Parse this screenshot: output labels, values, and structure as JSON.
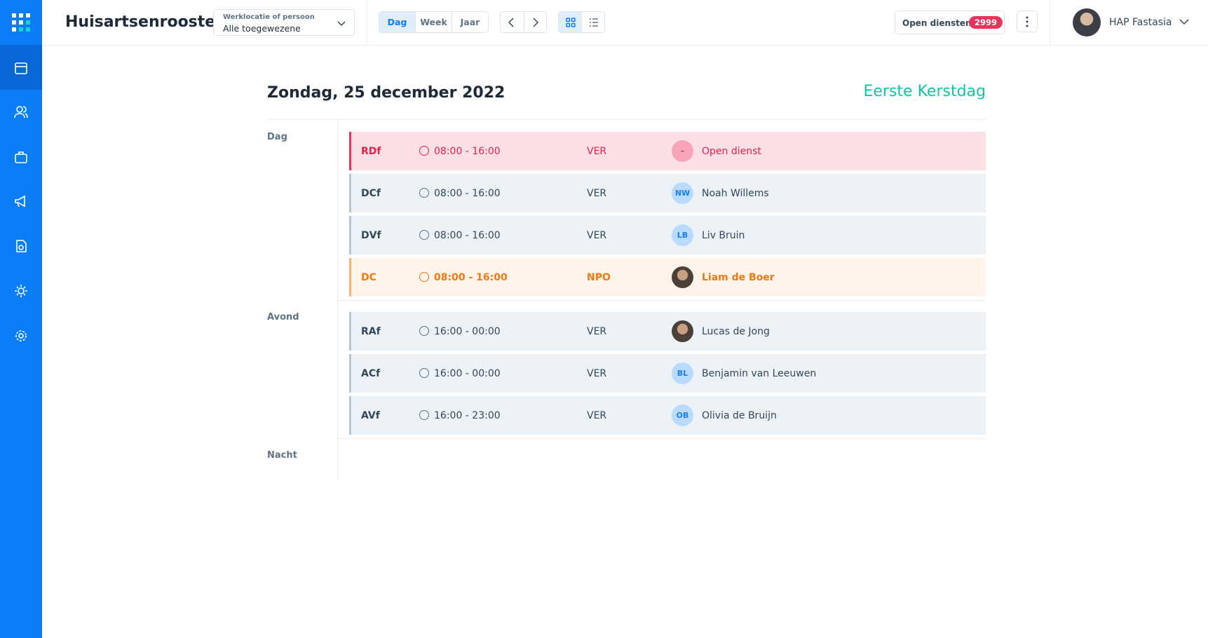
{
  "header": {
    "title": "Huisartsenrooster",
    "location_label": "Werklocatie of persoon",
    "location_value": "Alle toegewezene",
    "views": [
      "Dag",
      "Week",
      "Jaar"
    ],
    "open_label": "Open diensten",
    "open_count": 2999,
    "user": "HAP Fastasia"
  },
  "day": {
    "date": "Zondag, 25 december 2022",
    "holiday": "Eerste Kerstdag",
    "sections": [
      {
        "name": "Dag",
        "shifts": [
          {
            "code": "RDf",
            "time": "08:00 - 16:00",
            "type": "VER",
            "initials": "-",
            "person": "Open dienst",
            "color": "#e5224a"
          },
          {
            "code": "DCf",
            "time": "08:00 - 16:00",
            "type": "VER",
            "initials": "NW",
            "person": "Noah Willems"
          },
          {
            "code": "DVf",
            "time": "08:00 - 16:00",
            "type": "VER",
            "initials": "LB",
            "person": "Liv Bruin"
          },
          {
            "code": "DC",
            "time": "08:00 - 16:00",
            "type": "NPO",
            "person": "Liam de Boer",
            "color": "#f07a12"
          }
        ]
      },
      {
        "name": "Avond",
        "shifts": [
          {
            "code": "RAf",
            "time": "16:00 - 00:00",
            "type": "VER",
            "person": "Lucas de Jong"
          },
          {
            "code": "ACf",
            "time": "16:00 - 00:00",
            "type": "VER",
            "initials": "BL",
            "person": "Benjamin van Leeuwen"
          },
          {
            "code": "AVf",
            "time": "16:00 - 23:00",
            "type": "VER",
            "initials": "OB",
            "person": "Olivia de Bruijn"
          }
        ]
      },
      {
        "name": "Nacht",
        "shifts": []
      }
    ]
  }
}
